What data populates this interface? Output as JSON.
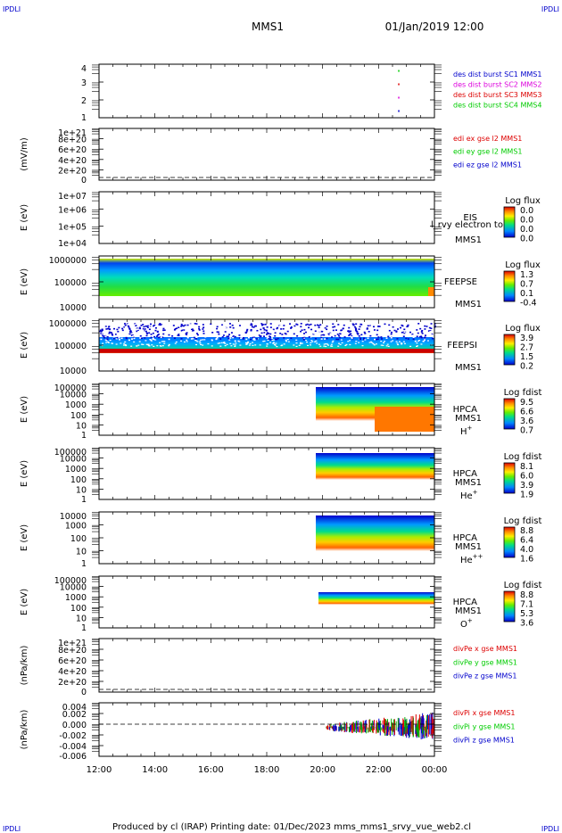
{
  "header": {
    "corner_tl": "IPDLI",
    "corner_tr": "IPDLI",
    "corner_bl": "IPDLI",
    "corner_br": "IPDLI",
    "title": "MMS1",
    "datetime": "01/Jan/2019 12:00"
  },
  "footer": "Produced by cl (IRAP)   Printing date: 01/Dec/2023   mms_mms1_srvy_vue_web2.cl",
  "colors": {
    "blue": "#0000cc",
    "magenta": "#dd00dd",
    "red": "#dd0000",
    "green": "#00cc00"
  },
  "chart_data": {
    "type": "multi-panel time series / spectrogram",
    "x_ticks": [
      "12:00",
      "14:00",
      "16:00",
      "18:00",
      "20:00",
      "22:00",
      "00:00"
    ],
    "panels": [
      {
        "id": "burst",
        "type": "scatter",
        "ylabel": "",
        "yticks": [
          "4",
          "3",
          "2",
          "1"
        ],
        "series": [
          {
            "name": "des dist burst SC1 MMS1",
            "color": "#0000cc",
            "time_hours": [
              22.7
            ],
            "values": [
              1
            ]
          },
          {
            "name": "des dist burst SC2 MMS2",
            "color": "#dd00dd",
            "time_hours": [
              22.7
            ],
            "values": [
              2
            ]
          },
          {
            "name": "des dist burst SC3 MMS3",
            "color": "#dd0000",
            "time_hours": [
              22.7
            ],
            "values": [
              3
            ]
          },
          {
            "name": "des dist burst SC4 MMS4",
            "color": "#00cc00",
            "time_hours": [
              22.7
            ],
            "values": [
              4
            ]
          }
        ]
      },
      {
        "id": "edi",
        "type": "line",
        "ylabel": "(mV/m)",
        "yticks": [
          "1e+21",
          "8e+20",
          "6e+20",
          "4e+20",
          "2e+20",
          "0"
        ],
        "series": [
          {
            "name": "edi ex gse l2 MMS1",
            "color": "#dd0000"
          },
          {
            "name": "edi ey gse l2 MMS1",
            "color": "#00cc00"
          },
          {
            "name": "edi ez gse l2 MMS1",
            "color": "#0000cc"
          }
        ]
      },
      {
        "id": "eis",
        "type": "heatmap",
        "ylabel": "E (eV)",
        "yticks": [
          "1e+07",
          "1e+06",
          "1e+05",
          "1e+04"
        ],
        "labels": [
          "EIS",
          "MMS1"
        ],
        "overlay_text": "l_rvy electron to",
        "colorbar": {
          "title": "Log flux",
          "ticks": [
            "0.0",
            "0.0",
            "0.0",
            "0.0"
          ]
        }
      },
      {
        "id": "feepse",
        "type": "heatmap",
        "ylabel": "E (eV)",
        "yticks": [
          "1000000",
          "100000",
          "10000"
        ],
        "labels": [
          "FEEPSE",
          "MMS1"
        ],
        "colorbar": {
          "title": "Log flux",
          "ticks": [
            "1.3",
            "0.7",
            "0.1",
            "-0.4"
          ]
        }
      },
      {
        "id": "feepsi",
        "type": "heatmap",
        "ylabel": "E (eV)",
        "yticks": [
          "1000000",
          "100000",
          "10000"
        ],
        "labels": [
          "FEEPSI",
          "MMS1"
        ],
        "colorbar": {
          "title": "Log flux",
          "ticks": [
            "3.9",
            "2.7",
            "1.5",
            "0.2"
          ]
        }
      },
      {
        "id": "hpca_h",
        "type": "heatmap",
        "ylabel": "E (eV)",
        "yticks": [
          "100000",
          "10000",
          "1000",
          "100",
          "10",
          "1"
        ],
        "labels": [
          "HPCA",
          "MMS1"
        ],
        "species": "H",
        "species_sup": "+",
        "colorbar": {
          "title": "Log fdist",
          "ticks": [
            "9.5",
            "6.6",
            "3.6",
            "0.7"
          ]
        }
      },
      {
        "id": "hpca_he",
        "type": "heatmap",
        "ylabel": "E (eV)",
        "yticks": [
          "100000",
          "10000",
          "1000",
          "100",
          "10",
          "1"
        ],
        "labels": [
          "HPCA",
          "MMS1"
        ],
        "species": "He",
        "species_sup": "+",
        "colorbar": {
          "title": "Log fdist",
          "ticks": [
            "8.1",
            "6.0",
            "3.9",
            "1.9"
          ]
        }
      },
      {
        "id": "hpca_hepp",
        "type": "heatmap",
        "ylabel": "E (eV)",
        "yticks": [
          "10000",
          "1000",
          "100",
          "10",
          "1"
        ],
        "labels": [
          "HPCA",
          "MMS1"
        ],
        "species": "He",
        "species_sup": "++",
        "colorbar": {
          "title": "Log fdist",
          "ticks": [
            "8.8",
            "6.4",
            "4.0",
            "1.6"
          ]
        }
      },
      {
        "id": "hpca_o",
        "type": "heatmap",
        "ylabel": "E (eV)",
        "yticks": [
          "100000",
          "10000",
          "1000",
          "100",
          "10",
          "1"
        ],
        "labels": [
          "HPCA",
          "MMS1"
        ],
        "species": "O",
        "species_sup": "+",
        "colorbar": {
          "title": "Log fdist",
          "ticks": [
            "8.8",
            "7.1",
            "5.3",
            "3.6"
          ]
        }
      },
      {
        "id": "divpe",
        "type": "line",
        "ylabel": "(nPa/km)",
        "yticks": [
          "1e+21",
          "8e+20",
          "6e+20",
          "4e+20",
          "2e+20",
          "0"
        ],
        "series": [
          {
            "name": "divPe x gse MMS1",
            "color": "#dd0000"
          },
          {
            "name": "divPe y gse MMS1",
            "color": "#00cc00"
          },
          {
            "name": "divPe z gse MMS1",
            "color": "#0000cc"
          }
        ]
      },
      {
        "id": "divpi",
        "type": "line",
        "ylabel": "(nPa/km)",
        "yticks": [
          "0.004",
          "0.002",
          "0.000",
          "-0.002",
          "-0.004",
          "-0.006"
        ],
        "series": [
          {
            "name": "divPi x gse MMS1",
            "color": "#dd0000"
          },
          {
            "name": "divPi y gse MMS1",
            "color": "#00cc00"
          },
          {
            "name": "divPi z gse MMS1",
            "color": "#0000cc"
          }
        ]
      }
    ]
  }
}
